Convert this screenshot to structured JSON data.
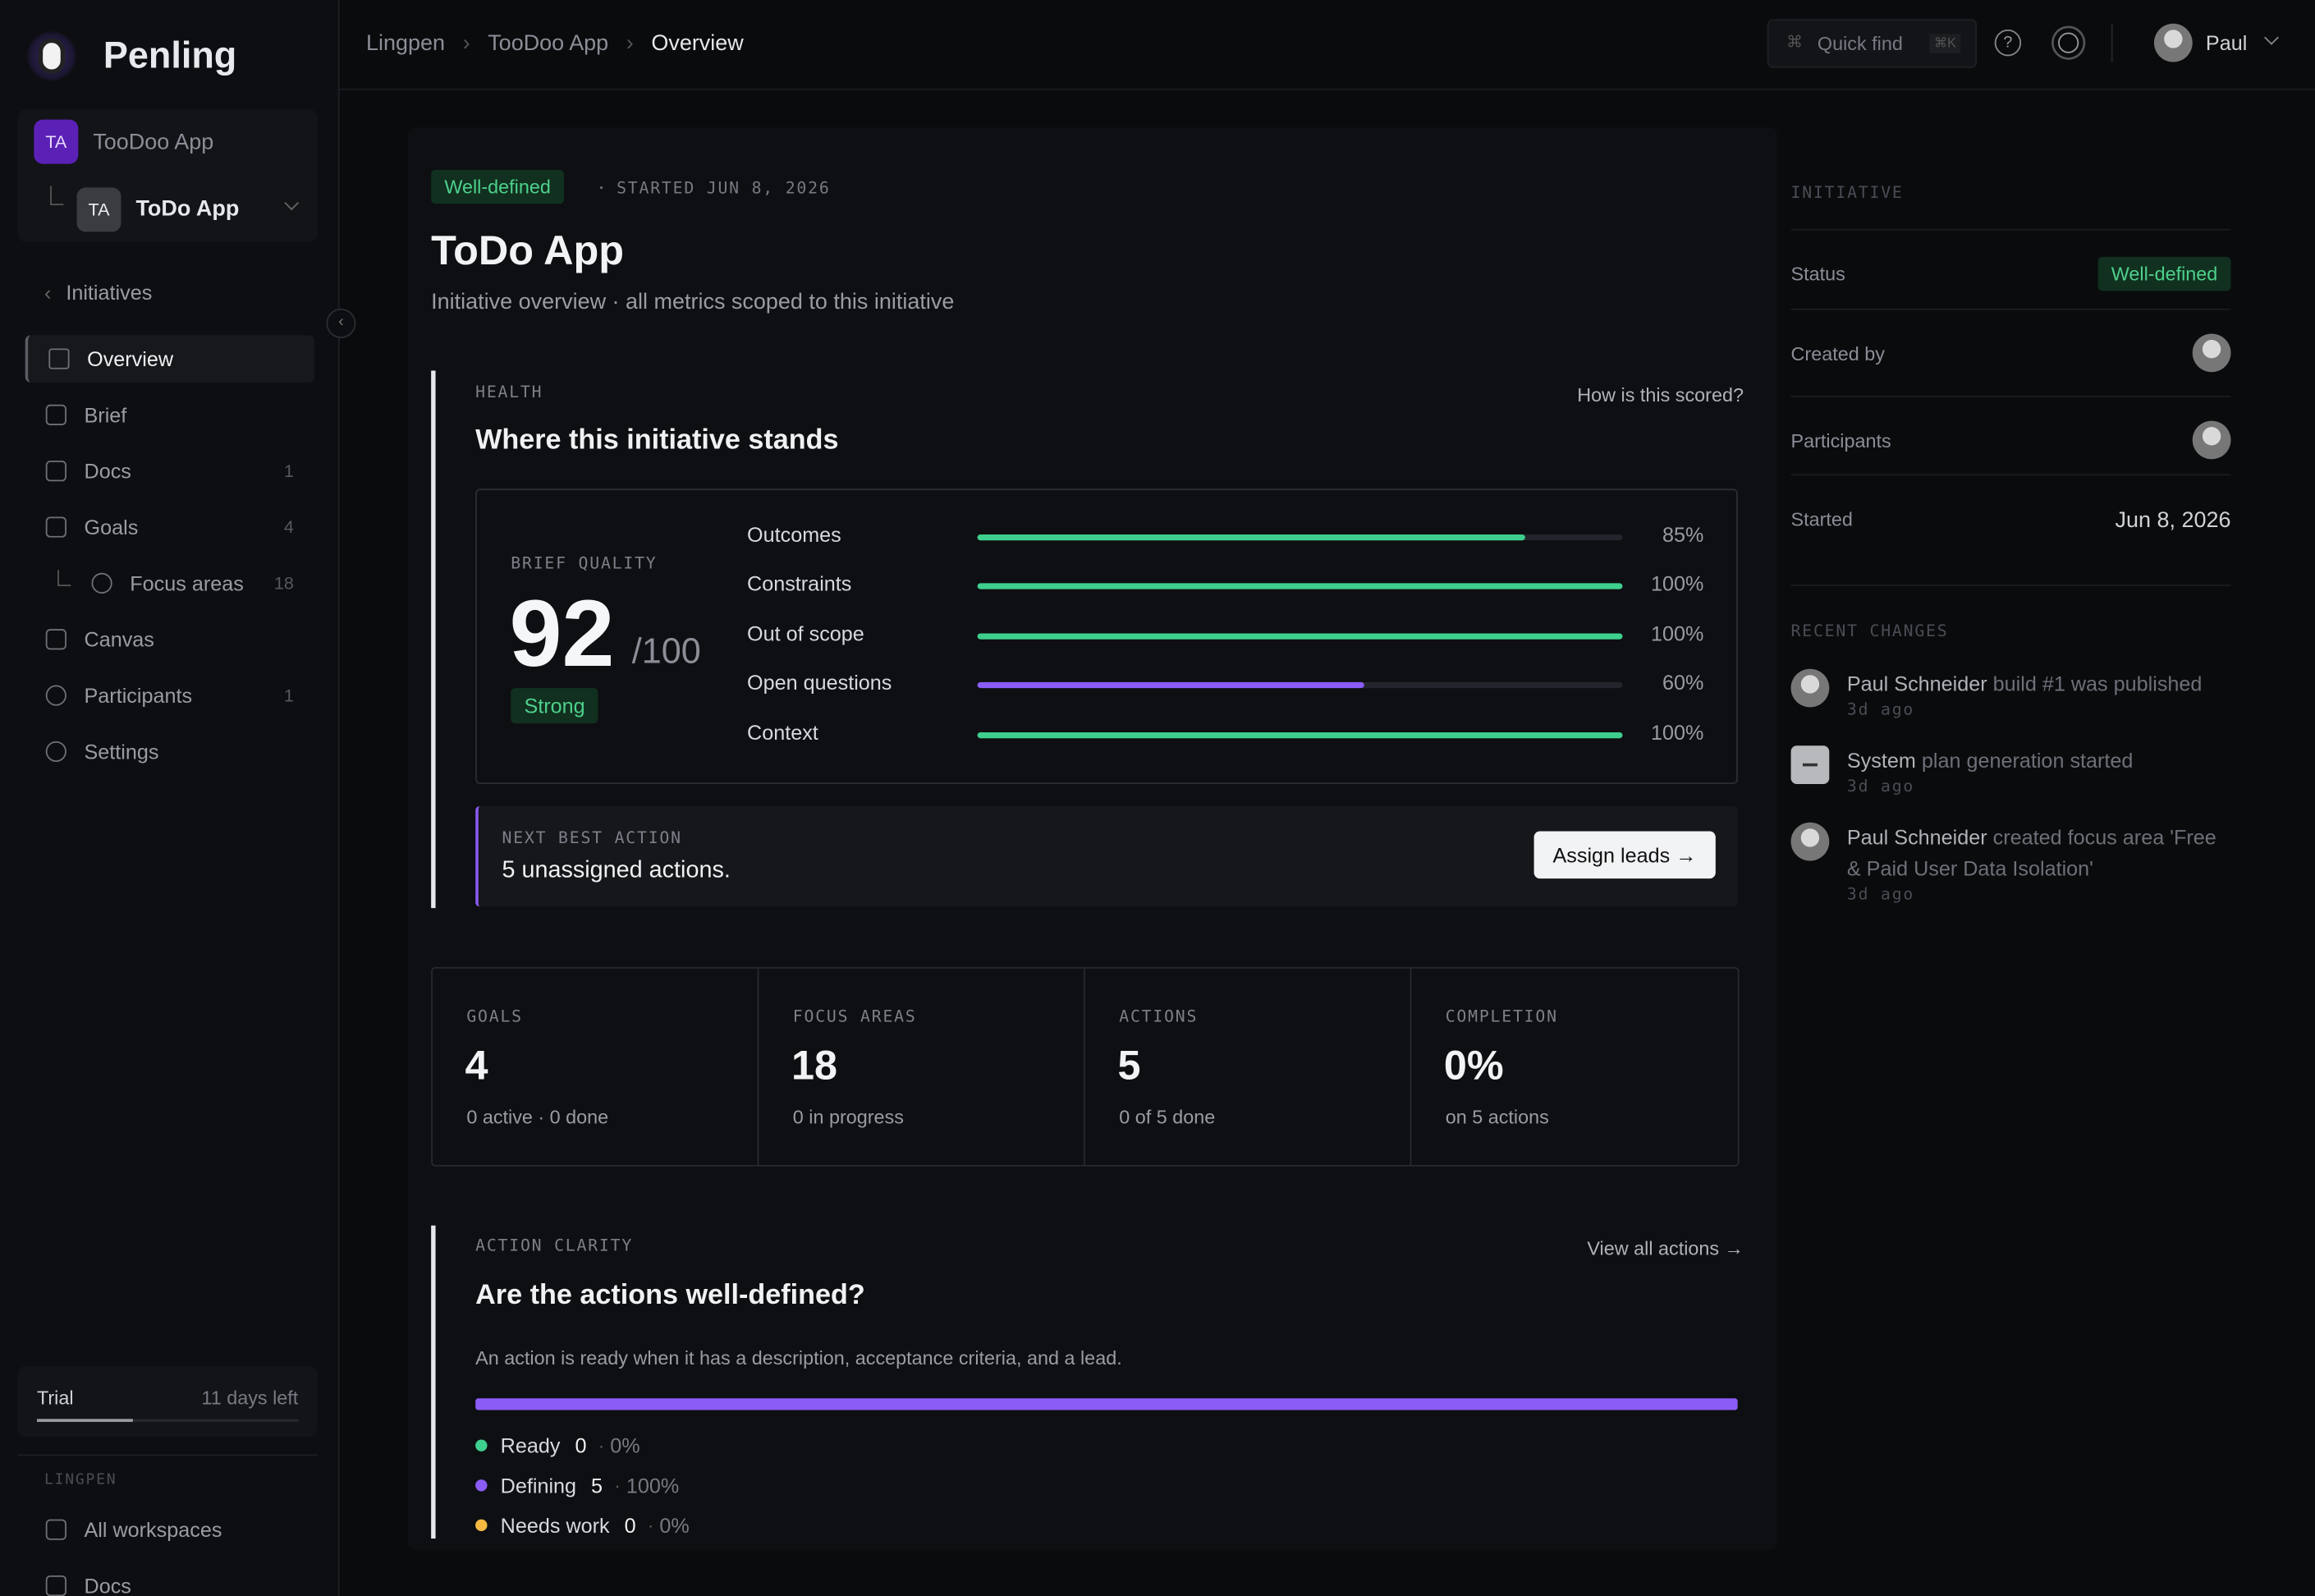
{
  "sidebar": {
    "brand": "Penling",
    "workspace": {
      "badge": "TA",
      "name": "TooDoo App"
    },
    "project": {
      "badge": "TA",
      "name": "ToDo App"
    },
    "back": "Initiatives",
    "nav": [
      {
        "label": "Overview"
      },
      {
        "label": "Brief"
      },
      {
        "label": "Docs",
        "count": 1
      },
      {
        "label": "Goals",
        "count": 4
      },
      {
        "label": "Focus areas",
        "count": 18
      },
      {
        "label": "Canvas"
      },
      {
        "label": "Participants",
        "count": 1
      },
      {
        "label": "Settings"
      }
    ],
    "trial": {
      "label": "Trial",
      "remaining": "11 days left"
    },
    "footer": {
      "section": "LINGPEN",
      "links": [
        "All workspaces",
        "Docs"
      ]
    }
  },
  "topbar": {
    "breadcrumbs": [
      "Lingpen",
      "TooDoo App",
      "Overview"
    ],
    "quick_find": "Quick find",
    "shortcut": "⌘K",
    "user": "Paul"
  },
  "main": {
    "status": "Well-defined",
    "started": "STARTED JUN 8, 2026",
    "title": "ToDo App",
    "subtitle": "Initiative overview · all metrics scoped to this initiative",
    "health": {
      "label": "HEALTH",
      "link": "How is this scored?",
      "heading": "Where this initiative stands",
      "quality_label": "BRIEF QUALITY",
      "score": 92,
      "score_max": "/100",
      "rating": "Strong",
      "metrics": [
        {
          "name": "Outcomes",
          "value": {
            "value": 85,
            "label": "85%"
          },
          "color": "#3ecf8e"
        },
        {
          "name": "Constraints",
          "value": {
            "value": 100,
            "label": "100%"
          },
          "color": "#3ecf8e"
        },
        {
          "name": "Out of scope",
          "value": {
            "value": 100,
            "label": "100%"
          },
          "color": "#3ecf8e"
        },
        {
          "name": "Open questions",
          "value": {
            "value": 60,
            "label": "60%"
          },
          "color": "#8b5cf6"
        },
        {
          "name": "Context",
          "value": {
            "value": 100,
            "label": "100%"
          },
          "color": "#3ecf8e"
        }
      ],
      "next_action": {
        "label": "NEXT BEST ACTION",
        "text": "5 unassigned actions.",
        "button": "Assign leads →"
      }
    },
    "stats": [
      {
        "label": "GOALS",
        "value": "4",
        "detail": "0 active · 0 done"
      },
      {
        "label": "FOCUS AREAS",
        "value": "18",
        "detail": "0 in progress"
      },
      {
        "label": "ACTIONS",
        "value": "5",
        "detail": "0 of 5 done"
      },
      {
        "label": "COMPLETION",
        "value": "0%",
        "detail": "on 5 actions"
      }
    ],
    "action_clarity": {
      "label": "ACTION CLARITY",
      "link": "View all actions →",
      "heading": "Are the actions well-defined?",
      "description": "An action is ready when it has a description, acceptance criteria, and a lead.",
      "segments": [
        {
          "name": "Ready",
          "count": 0,
          "pct": "0%",
          "color": "#3ecf8e"
        },
        {
          "name": "Defining",
          "count": 5,
          "pct": "100%",
          "color": "#8b5cf6"
        },
        {
          "name": "Needs work",
          "count": 0,
          "pct": "0%",
          "color": "#f5b942"
        }
      ]
    }
  },
  "panel": {
    "section": "INITIATIVE",
    "rows": [
      {
        "label": "Status",
        "value": "Well-defined"
      },
      {
        "label": "Created by"
      },
      {
        "label": "Participants"
      },
      {
        "label": "Started",
        "value": "Jun 8, 2026"
      }
    ],
    "recent_label": "RECENT CHANGES",
    "recent": [
      {
        "actor": "Paul Schneider",
        "action": "build #1 was published",
        "time": "3d ago"
      },
      {
        "actor": "System",
        "action": "plan generation started",
        "time": "3d ago"
      },
      {
        "actor": "Paul Schneider",
        "action": "created focus area 'Free & Paid User Data Isolation'",
        "time": "3d ago"
      }
    ]
  }
}
